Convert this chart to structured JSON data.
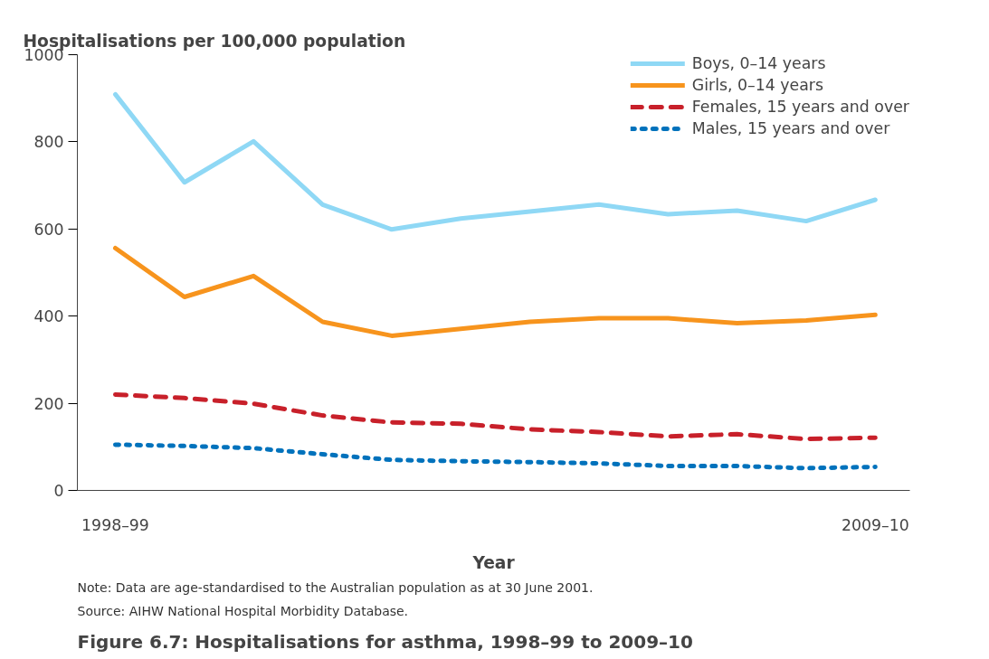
{
  "chart_data": {
    "type": "line",
    "title": "Figure 6.7: Hospitalisations for asthma, 1998–99 to 2009–10",
    "ylabel": "Hospitalisations per 100,000 population",
    "xlabel": "Year",
    "categories": [
      "1998–99",
      null,
      null,
      null,
      null,
      null,
      null,
      null,
      null,
      null,
      null,
      "2009–10"
    ],
    "series": [
      {
        "name": "Boys, 0–14 years",
        "color": "#8fd8f5",
        "line_style": "solid",
        "values": [
          909,
          707,
          801,
          656,
          599,
          624,
          640,
          656,
          634,
          642,
          618,
          667
        ]
      },
      {
        "name": "Girls, 0–14 years",
        "color": "#f7941d",
        "line_style": "solid",
        "values": [
          556,
          444,
          492,
          387,
          355,
          371,
          387,
          395,
          395,
          384,
          390,
          403
        ]
      },
      {
        "name": "Females, 15 years and over",
        "color": "#c8202a",
        "line_style": "dashed",
        "values": [
          220,
          212,
          199,
          172,
          156,
          153,
          140,
          134,
          124,
          129,
          118,
          121
        ]
      },
      {
        "name": "Males, 15 years and over",
        "color": "#0072bc",
        "line_style": "dotted",
        "values": [
          105,
          102,
          97,
          83,
          70,
          67,
          65,
          62,
          56,
          56,
          51,
          54
        ]
      }
    ],
    "ylim": [
      0,
      1000
    ],
    "yticks": [
      0,
      200,
      400,
      600,
      800,
      1000
    ],
    "grid": false,
    "legend": "top right",
    "marker": "none",
    "annotations": [
      "Note: Data are age-standardised to the Australian population as at 30 June 2001.",
      "Source: AIHW National Hospital Morbidity Database."
    ]
  }
}
